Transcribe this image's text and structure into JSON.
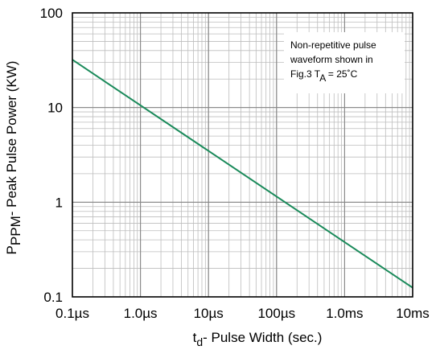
{
  "chart_data": {
    "type": "line",
    "xscale": "log",
    "yscale": "log",
    "xlim": [
      1e-07,
      0.01
    ],
    "ylim": [
      0.1,
      100
    ],
    "grid": true,
    "x_ticks": [
      {
        "value": 1e-07,
        "label": "0.1µs"
      },
      {
        "value": 1e-06,
        "label": "1.0µs"
      },
      {
        "value": 1e-05,
        "label": "10µs"
      },
      {
        "value": 0.0001,
        "label": "100µs"
      },
      {
        "value": 0.001,
        "label": "1.0ms"
      },
      {
        "value": 0.01,
        "label": "10ms"
      }
    ],
    "y_ticks": [
      {
        "value": 0.1,
        "label": "0.1"
      },
      {
        "value": 1,
        "label": "1"
      },
      {
        "value": 10,
        "label": "10"
      },
      {
        "value": 100,
        "label": "100"
      }
    ],
    "xlabel": {
      "main": "t",
      "sub": "d",
      "rest": "- Pulse Width (sec.)"
    },
    "ylabel": {
      "main": "P",
      "sub": "PPM",
      "rest": "- Peak Pulse Power (KW)"
    },
    "annotation": {
      "line1": "Non-repetitive pulse",
      "line2": "waveform shown in",
      "line3_prefix": "Fig.3 T",
      "line3_sub": "A",
      "line3_suffix": " = 25˚C"
    },
    "series": [
      {
        "color": "#1a8a5a",
        "x": [
          1e-07,
          0.01
        ],
        "y": [
          32,
          0.125
        ]
      }
    ]
  }
}
